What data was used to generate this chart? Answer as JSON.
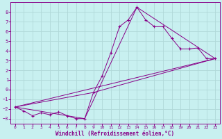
{
  "xlabel": "Windchill (Refroidissement éolien,°C)",
  "bg_color": "#c8f0f0",
  "grid_color": "#b0d8d8",
  "line_color": "#880088",
  "xlim": [
    -0.5,
    23.5
  ],
  "ylim": [
    -3.5,
    9.0
  ],
  "xticks": [
    0,
    1,
    2,
    3,
    4,
    5,
    6,
    7,
    8,
    9,
    10,
    11,
    12,
    13,
    14,
    15,
    16,
    17,
    18,
    19,
    20,
    21,
    22,
    23
  ],
  "yticks": [
    -3,
    -2,
    -1,
    0,
    1,
    2,
    3,
    4,
    5,
    6,
    7,
    8
  ],
  "series1_x": [
    0,
    1,
    2,
    3,
    4,
    5,
    6,
    7,
    8,
    9,
    10,
    11,
    12,
    13,
    14,
    15,
    16,
    17,
    18,
    19,
    20,
    21,
    22,
    23
  ],
  "series1_y": [
    -1.8,
    -2.2,
    -2.7,
    -2.4,
    -2.6,
    -2.3,
    -2.7,
    -3.0,
    -3.0,
    -0.3,
    1.4,
    3.8,
    6.5,
    7.2,
    8.5,
    7.2,
    6.5,
    6.5,
    5.3,
    4.2,
    4.2,
    4.3,
    3.2,
    3.2
  ],
  "series2_x": [
    0,
    23
  ],
  "series2_y": [
    -1.8,
    3.2
  ],
  "series3_x": [
    0,
    9,
    23
  ],
  "series3_y": [
    -1.8,
    -0.3,
    3.2
  ],
  "series4_x": [
    0,
    8,
    14,
    23
  ],
  "series4_y": [
    -1.8,
    -3.0,
    8.5,
    3.2
  ]
}
